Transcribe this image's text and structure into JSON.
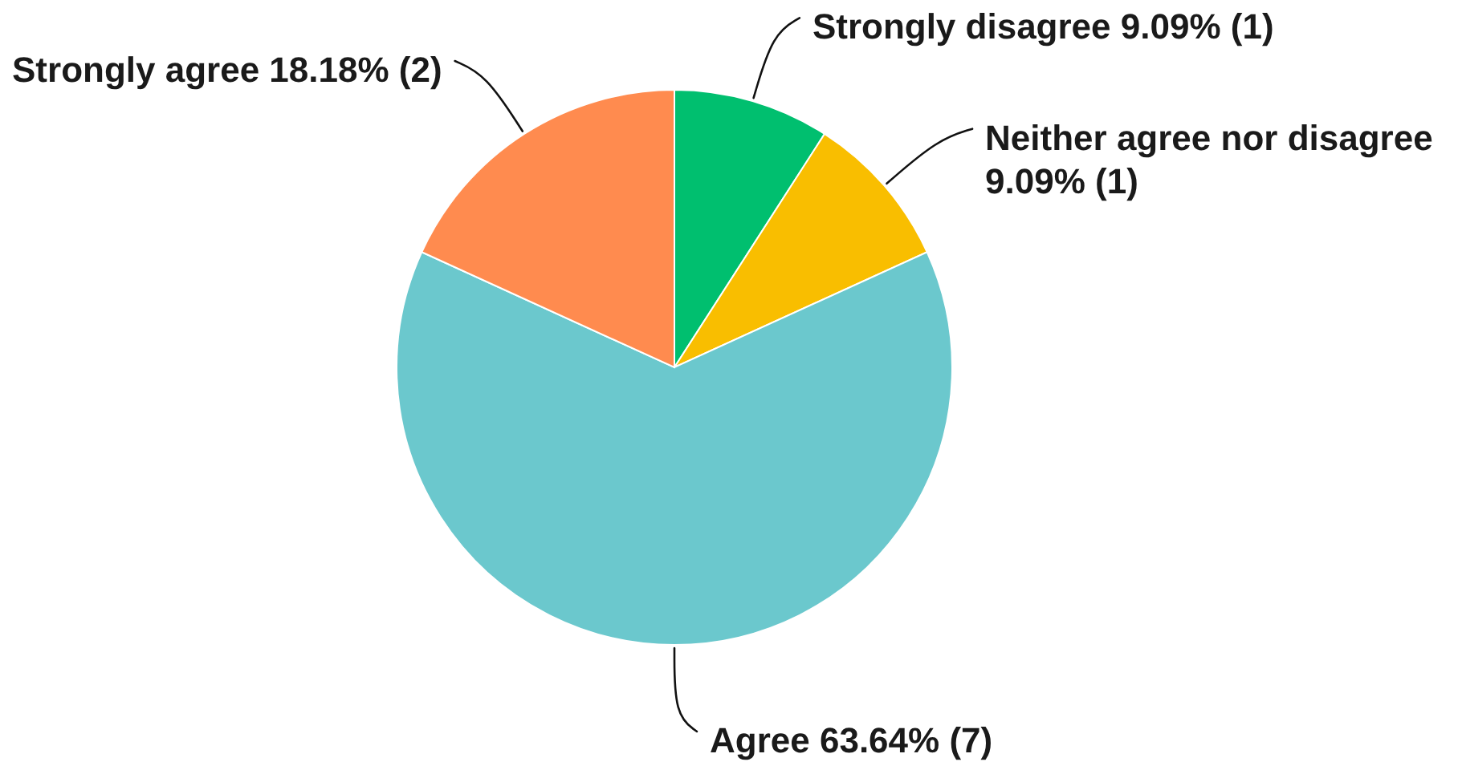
{
  "chart_data": {
    "type": "pie",
    "categories": [
      "Strongly disagree",
      "Neither agree nor disagree",
      "Agree",
      "Strongly agree"
    ],
    "values": [
      9.09,
      9.09,
      63.64,
      18.18
    ],
    "colors": [
      "#00bf6f",
      "#f9be00",
      "#6bc8cd",
      "#ff8b4f"
    ],
    "value_labels": [
      "9.09% (1)",
      "9.09% (1)",
      "63.64% (7)",
      "18.18% (2)"
    ]
  }
}
